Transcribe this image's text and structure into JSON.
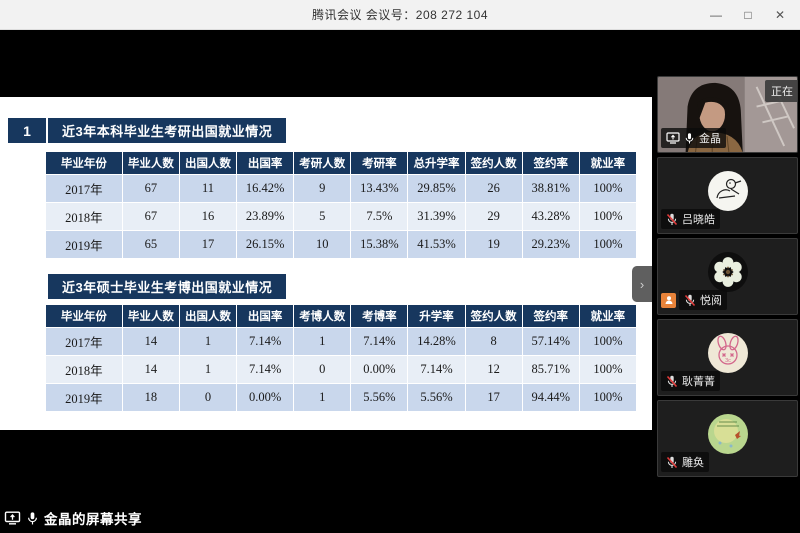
{
  "titlebar": {
    "title": "腾讯会议 会议号：208 272 104",
    "minimize_glyph": "—",
    "maximize_glyph": "□",
    "close_glyph": "✕"
  },
  "slide": {
    "section_number": "1",
    "tables": [
      {
        "title": "近3年本科毕业生考研出国就业情况",
        "headers": [
          "毕业年份",
          "毕业人数",
          "出国人数",
          "出国率",
          "考研人数",
          "考研率",
          "总升学率",
          "签约人数",
          "签约率",
          "就业率"
        ],
        "rows": [
          [
            "2017年",
            "67",
            "11",
            "16.42%",
            "9",
            "13.43%",
            "29.85%",
            "26",
            "38.81%",
            "100%"
          ],
          [
            "2018年",
            "67",
            "16",
            "23.89%",
            "5",
            "7.5%",
            "31.39%",
            "29",
            "43.28%",
            "100%"
          ],
          [
            "2019年",
            "65",
            "17",
            "26.15%",
            "10",
            "15.38%",
            "41.53%",
            "19",
            "29.23%",
            "100%"
          ]
        ]
      },
      {
        "title": "近3年硕士毕业生考博出国就业情况",
        "headers": [
          "毕业年份",
          "毕业人数",
          "出国人数",
          "出国率",
          "考博人数",
          "考博率",
          "升学率",
          "签约人数",
          "签约率",
          "就业率"
        ],
        "rows": [
          [
            "2017年",
            "14",
            "1",
            "7.14%",
            "1",
            "7.14%",
            "14.28%",
            "8",
            "57.14%",
            "100%"
          ],
          [
            "2018年",
            "14",
            "1",
            "7.14%",
            "0",
            "0.00%",
            "7.14%",
            "12",
            "85.71%",
            "100%"
          ],
          [
            "2019年",
            "18",
            "0",
            "0.00%",
            "1",
            "5.56%",
            "5.56%",
            "17",
            "94.44%",
            "100%"
          ]
        ]
      }
    ]
  },
  "sidebar": {
    "expand_chevron_glyph": "›",
    "participants": [
      {
        "name": "金晶",
        "mic_muted": false,
        "sharing": true,
        "video_on": true,
        "status_label": "正在",
        "avatar_icon": "webcam-video"
      },
      {
        "name": "吕晓皓",
        "mic_muted": true,
        "sharing": false,
        "video_on": false,
        "avatar_icon": "doodle-sketch-avatar"
      },
      {
        "name": "悦阅",
        "mic_muted": true,
        "sharing": false,
        "video_on": false,
        "host_badge": true,
        "avatar_icon": "white-flower-avatar"
      },
      {
        "name": "耿菁菁",
        "mic_muted": true,
        "sharing": false,
        "video_on": false,
        "avatar_icon": "pink-bunny-avatar"
      },
      {
        "name": "雕奂",
        "mic_muted": true,
        "sharing": false,
        "video_on": false,
        "avatar_icon": "green-butterfly-avatar"
      }
    ]
  },
  "statusbar": {
    "share_label": "金晶的屏幕共享"
  },
  "colors": {
    "accent_navy": "#17375e",
    "row_band_a": "#c9d7ec",
    "row_band_b": "#e8eef6",
    "muted_red": "#e23b3b",
    "host_orange": "#e8833a",
    "titlebar_bg": "#f2f2f2"
  }
}
